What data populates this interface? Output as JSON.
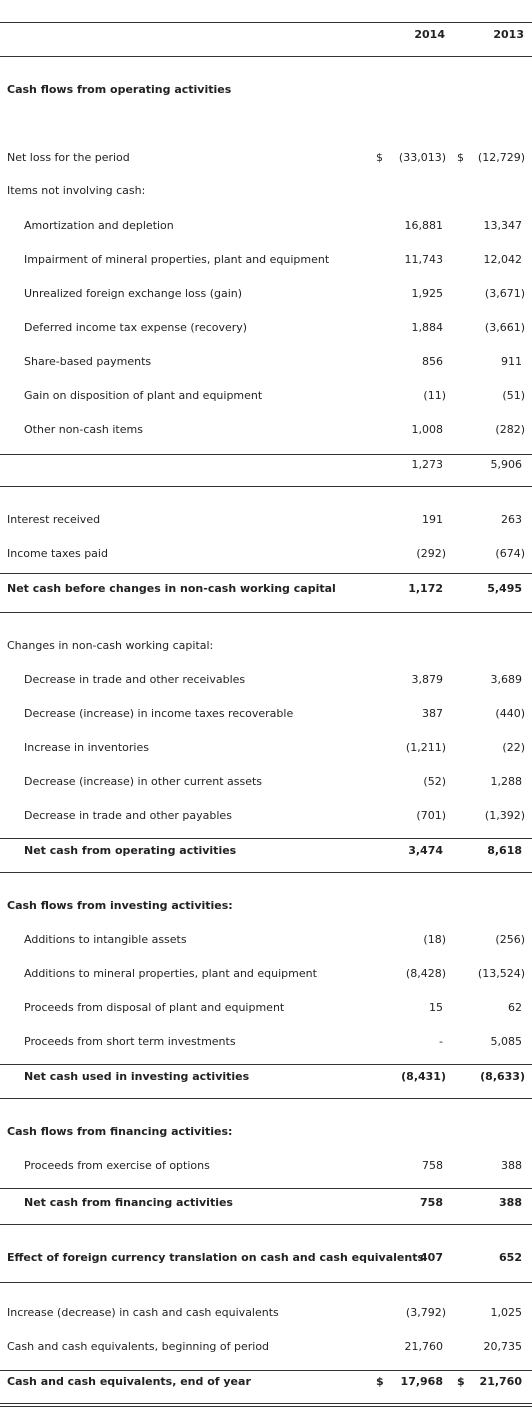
{
  "table": {
    "columns": [
      "2014",
      "2013"
    ],
    "rows": [
      {
        "label": "Cash flows from operating activities"
      },
      {
        "label": "Net loss for the period",
        "currency": [
          "$",
          "$"
        ],
        "values": [
          "(33,013)",
          "(12,729)"
        ]
      },
      {
        "label": "Items not involving cash:"
      },
      {
        "label": "Amortization and depletion",
        "values": [
          "16,881",
          "13,347"
        ]
      },
      {
        "label": "Impairment of mineral properties, plant and equipment",
        "values": [
          "11,743",
          "12,042"
        ]
      },
      {
        "label": "Unrealized foreign exchange loss (gain)",
        "values": [
          "1,925",
          "(3,671)"
        ]
      },
      {
        "label": "Deferred income tax expense (recovery)",
        "values": [
          "1,884",
          "(3,661)"
        ]
      },
      {
        "label": "Share-based payments",
        "values": [
          "856",
          "911"
        ]
      },
      {
        "label": "Gain on disposition of plant and equipment",
        "values": [
          "(11)",
          "(51)"
        ]
      },
      {
        "label": "Other non-cash items",
        "values": [
          "1,008",
          "(282)"
        ]
      },
      {
        "values": [
          "1,273",
          "5,906"
        ]
      },
      {
        "label": "Interest received",
        "values": [
          "191",
          "263"
        ]
      },
      {
        "label": "Income taxes paid",
        "values": [
          "(292)",
          "(674)"
        ]
      },
      {
        "label": "Net cash before changes in non-cash working capital",
        "values": [
          "1,172",
          "5,495"
        ]
      },
      {
        "label": "Changes in non-cash working capital:"
      },
      {
        "label": "Decrease in trade and other receivables",
        "values": [
          "3,879",
          "3,689"
        ]
      },
      {
        "label": "Decrease (increase) in income taxes recoverable",
        "values": [
          "387",
          "(440)"
        ]
      },
      {
        "label": "Increase in inventories",
        "values": [
          "(1,211)",
          "(22)"
        ]
      },
      {
        "label": "Decrease (increase) in other current assets",
        "values": [
          "(52)",
          "1,288"
        ]
      },
      {
        "label": "Decrease in trade and other payables",
        "values": [
          "(701)",
          "(1,392)"
        ]
      },
      {
        "label": "Net cash from operating activities",
        "values": [
          "3,474",
          "8,618"
        ]
      },
      {
        "label": "Cash flows from investing activities:"
      },
      {
        "label": "Additions to intangible assets",
        "values": [
          "(18)",
          "(256)"
        ]
      },
      {
        "label": "Additions to mineral properties, plant and equipment",
        "values": [
          "(8,428)",
          "(13,524)"
        ]
      },
      {
        "label": "Proceeds from disposal of plant and equipment",
        "values": [
          "15",
          "62"
        ]
      },
      {
        "label": "Proceeds from short term investments",
        "values": [
          "-",
          "5,085"
        ]
      },
      {
        "label": "Net cash used in investing activities",
        "values": [
          "(8,431)",
          "(8,633)"
        ]
      },
      {
        "label": "Cash flows from financing activities:"
      },
      {
        "label": "Proceeds from exercise of options",
        "values": [
          "758",
          "388"
        ]
      },
      {
        "label": "Net cash from financing activities",
        "values": [
          "758",
          "388"
        ]
      },
      {
        "label": "Effect of foreign currency translation on cash and cash equivalents",
        "values": [
          "407",
          "652"
        ]
      },
      {
        "label": "Increase (decrease) in cash and cash equivalents",
        "values": [
          "(3,792)",
          "1,025"
        ]
      },
      {
        "label": "Cash and cash equivalents, beginning of period",
        "values": [
          "21,760",
          "20,735"
        ]
      },
      {
        "label": "Cash and cash equivalents, end of year",
        "currency": [
          "$",
          "$"
        ],
        "values": [
          "17,968",
          "21,760"
        ]
      }
    ]
  }
}
